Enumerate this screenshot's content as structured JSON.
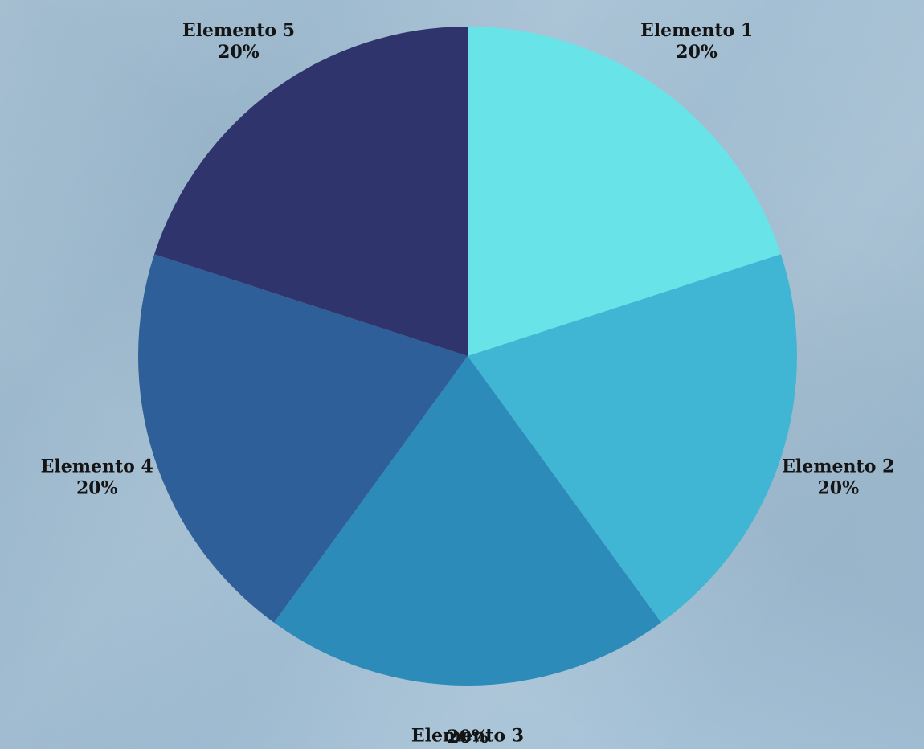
{
  "chart_data": {
    "type": "pie",
    "title": "",
    "start_angle_deg": 0,
    "direction": "clockwise",
    "slices": [
      {
        "label": "Elemento 1",
        "value": 20,
        "display": "20%",
        "color": "#68e4e8"
      },
      {
        "label": "Elemento 2",
        "value": 20,
        "display": "20%",
        "color": "#40b6d4"
      },
      {
        "label": "Elemento 3",
        "value": 20,
        "display": "20%",
        "color": "#2d8bba"
      },
      {
        "label": "Elemento 4",
        "value": 20,
        "display": "20%",
        "color": "#2e5f98"
      },
      {
        "label": "Elemento 5",
        "value": 20,
        "display": "20%",
        "color": "#30346c"
      }
    ],
    "legend": "none",
    "labels_position": "outside"
  }
}
